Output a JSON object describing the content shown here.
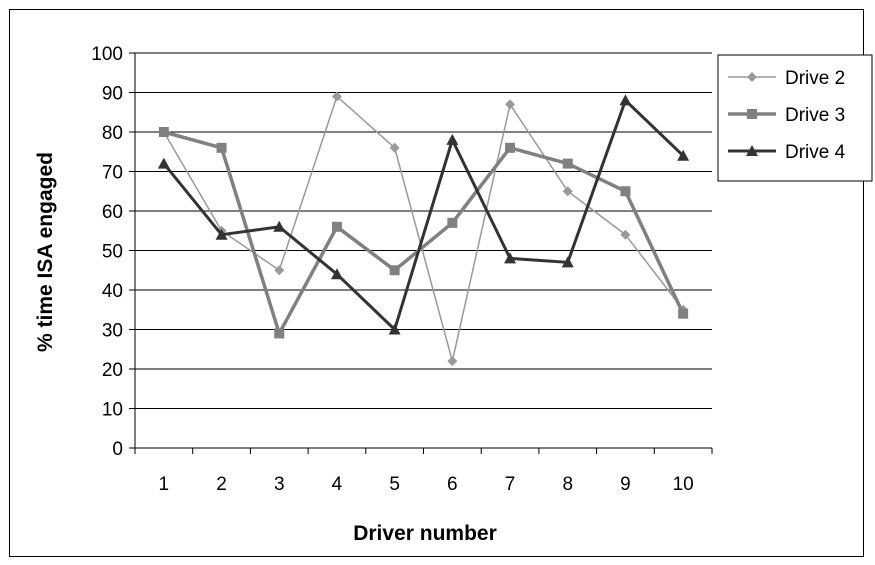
{
  "chart_data": {
    "type": "line",
    "title": "",
    "xlabel": "Driver number",
    "ylabel": "% time ISA engaged",
    "categories": [
      "1",
      "2",
      "3",
      "4",
      "5",
      "6",
      "7",
      "8",
      "9",
      "10"
    ],
    "ylim": [
      0,
      100
    ],
    "yticks": [
      "0",
      "10",
      "20",
      "30",
      "40",
      "50",
      "60",
      "70",
      "80",
      "90",
      "100"
    ],
    "grid": true,
    "legend_position": "right",
    "series": [
      {
        "name": "Drive 2",
        "color": "#999999",
        "marker": "diamond",
        "values": [
          80,
          55,
          45,
          89,
          76,
          22,
          87,
          65,
          54,
          35
        ]
      },
      {
        "name": "Drive 3",
        "color": "#808080",
        "marker": "square",
        "values": [
          80,
          76,
          29,
          56,
          45,
          57,
          76,
          72,
          65,
          34
        ]
      },
      {
        "name": "Drive 4",
        "color": "#333333",
        "marker": "triangle",
        "values": [
          72,
          54,
          56,
          44,
          30,
          78,
          48,
          47,
          88,
          74
        ]
      }
    ]
  }
}
